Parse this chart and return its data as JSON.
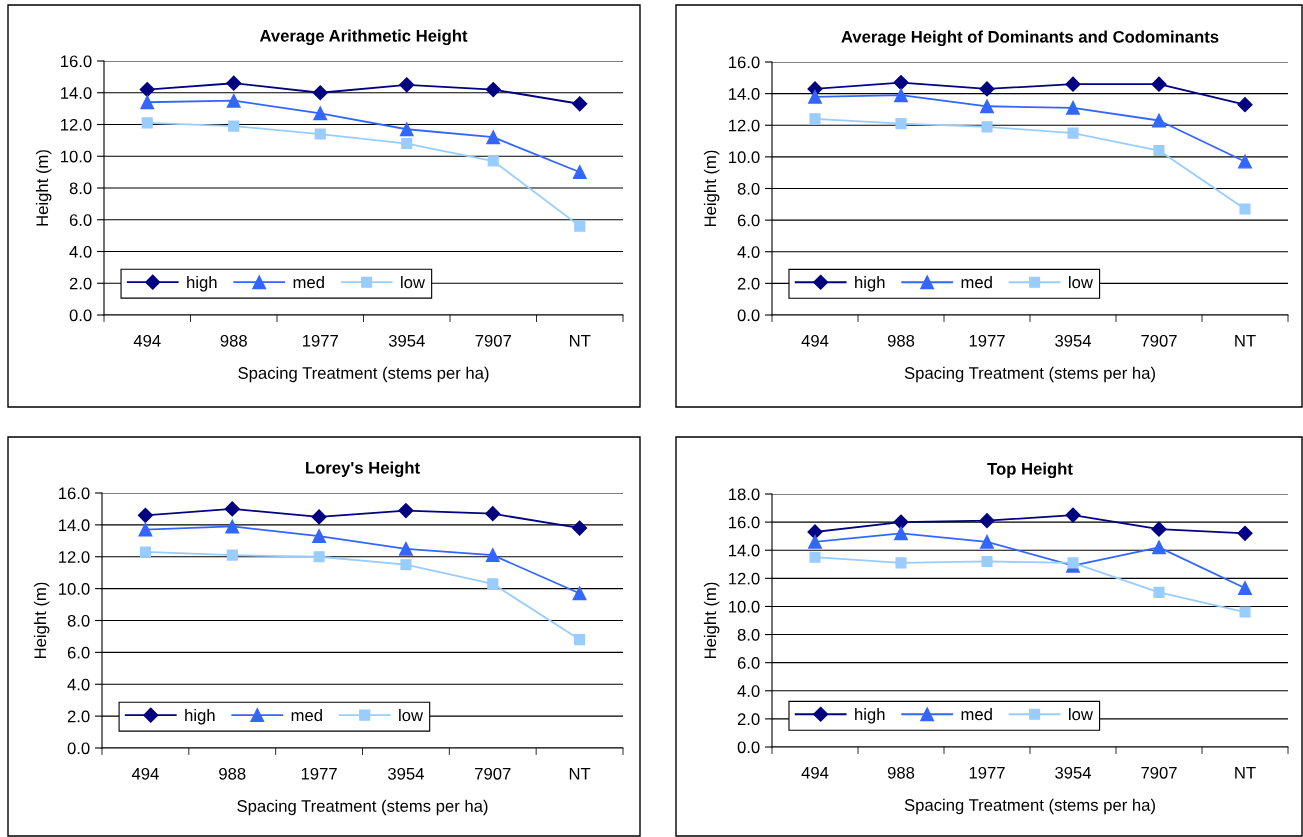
{
  "chart_data": [
    {
      "type": "line",
      "title": "Average Arithmetic Height",
      "xlabel": "Spacing Treatment (stems per ha)",
      "ylabel": "Height (m)",
      "categories": [
        "494",
        "988",
        "1977",
        "3954",
        "7907",
        "NT"
      ],
      "ylim": [
        0,
        16
      ],
      "yticks": [
        {
          "value": 0,
          "label": "0.0"
        },
        {
          "value": 2,
          "label": "2.0"
        },
        {
          "value": 4,
          "label": "4.0"
        },
        {
          "value": 6,
          "label": "6.0"
        },
        {
          "value": 8,
          "label": "8.0"
        },
        {
          "value": 10,
          "label": "10.0"
        },
        {
          "value": 12,
          "label": "12.0"
        },
        {
          "value": 14,
          "label": "14.0"
        },
        {
          "value": 16,
          "label": "16.0"
        }
      ],
      "grid": "y",
      "legend": "bottom left",
      "line_style": "solid",
      "series": [
        {
          "name": "high",
          "color": "#000080",
          "marker": "diamond",
          "values": [
            14.2,
            14.6,
            14.0,
            14.5,
            14.2,
            13.3
          ]
        },
        {
          "name": "med",
          "color": "#3366ff",
          "marker": "triangle",
          "values": [
            13.4,
            13.5,
            12.7,
            11.7,
            11.2,
            9.0
          ]
        },
        {
          "name": "low",
          "color": "#99ccff",
          "marker": "square",
          "values": [
            12.1,
            11.9,
            11.4,
            10.8,
            9.7,
            5.6
          ]
        }
      ]
    },
    {
      "type": "line",
      "title": "Average Height of Dominants and Codominants",
      "xlabel": "Spacing Treatment (stems per ha)",
      "ylabel": "Height (m)",
      "categories": [
        "494",
        "988",
        "1977",
        "3954",
        "7907",
        "NT"
      ],
      "ylim": [
        0,
        16
      ],
      "yticks": [
        {
          "value": 0,
          "label": "0.0"
        },
        {
          "value": 2,
          "label": "2.0"
        },
        {
          "value": 4,
          "label": "4.0"
        },
        {
          "value": 6,
          "label": "6.0"
        },
        {
          "value": 8,
          "label": "8.0"
        },
        {
          "value": 10,
          "label": "10.0"
        },
        {
          "value": 12,
          "label": "12.0"
        },
        {
          "value": 14,
          "label": "14.0"
        },
        {
          "value": 16,
          "label": "16.0"
        }
      ],
      "grid": "y",
      "legend": "bottom left",
      "line_style": "solid",
      "series": [
        {
          "name": "high",
          "color": "#000080",
          "marker": "diamond",
          "values": [
            14.3,
            14.7,
            14.3,
            14.6,
            14.6,
            13.3
          ]
        },
        {
          "name": "med",
          "color": "#3366ff",
          "marker": "triangle",
          "values": [
            13.8,
            13.9,
            13.2,
            13.1,
            12.3,
            9.7
          ]
        },
        {
          "name": "low",
          "color": "#99ccff",
          "marker": "square",
          "values": [
            12.4,
            12.1,
            11.9,
            11.5,
            10.4,
            6.7
          ]
        }
      ]
    },
    {
      "type": "line",
      "title": "Lorey's Height",
      "xlabel": "Spacing Treatment (stems per ha)",
      "ylabel": "Height (m)",
      "categories": [
        "494",
        "988",
        "1977",
        "3954",
        "7907",
        "NT"
      ],
      "ylim": [
        0,
        16
      ],
      "yticks": [
        {
          "value": 0,
          "label": "0.0"
        },
        {
          "value": 2,
          "label": "2.0"
        },
        {
          "value": 4,
          "label": "4.0"
        },
        {
          "value": 6,
          "label": "6.0"
        },
        {
          "value": 8,
          "label": "8.0"
        },
        {
          "value": 10,
          "label": "10.0"
        },
        {
          "value": 12,
          "label": "12.0"
        },
        {
          "value": 14,
          "label": "14.0"
        },
        {
          "value": 16,
          "label": "16.0"
        }
      ],
      "grid": "y",
      "legend": "bottom left",
      "line_style": "solid",
      "series": [
        {
          "name": "high",
          "color": "#000080",
          "marker": "diamond",
          "values": [
            14.6,
            15.0,
            14.5,
            14.9,
            14.7,
            13.8
          ]
        },
        {
          "name": "med",
          "color": "#3366ff",
          "marker": "triangle",
          "values": [
            13.7,
            13.9,
            13.3,
            12.5,
            12.1,
            9.7
          ]
        },
        {
          "name": "low",
          "color": "#99ccff",
          "marker": "square",
          "values": [
            12.3,
            12.1,
            12.0,
            11.5,
            10.3,
            6.8
          ]
        }
      ]
    },
    {
      "type": "line",
      "title": "Top Height",
      "xlabel": "Spacing Treatment (stems per ha)",
      "ylabel": "Height (m)",
      "categories": [
        "494",
        "988",
        "1977",
        "3954",
        "7907",
        "NT"
      ],
      "ylim": [
        0,
        18
      ],
      "yticks": [
        {
          "value": 0,
          "label": "0.0"
        },
        {
          "value": 2,
          "label": "2.0"
        },
        {
          "value": 4,
          "label": "4.0"
        },
        {
          "value": 6,
          "label": "6.0"
        },
        {
          "value": 8,
          "label": "8.0"
        },
        {
          "value": 10,
          "label": "10.0"
        },
        {
          "value": 12,
          "label": "12.0"
        },
        {
          "value": 14,
          "label": "14.0"
        },
        {
          "value": 16,
          "label": "16.0"
        },
        {
          "value": 18,
          "label": "18.0"
        }
      ],
      "grid": "y",
      "legend": "bottom left",
      "line_style": "solid",
      "series": [
        {
          "name": "high",
          "color": "#000080",
          "marker": "diamond",
          "values": [
            15.3,
            16.0,
            16.1,
            16.5,
            15.5,
            15.2
          ]
        },
        {
          "name": "med",
          "color": "#3366ff",
          "marker": "triangle",
          "values": [
            14.6,
            15.2,
            14.6,
            12.9,
            14.2,
            11.3
          ]
        },
        {
          "name": "low",
          "color": "#99ccff",
          "marker": "square",
          "values": [
            13.5,
            13.1,
            13.2,
            13.1,
            11.0,
            9.6
          ]
        }
      ]
    }
  ]
}
